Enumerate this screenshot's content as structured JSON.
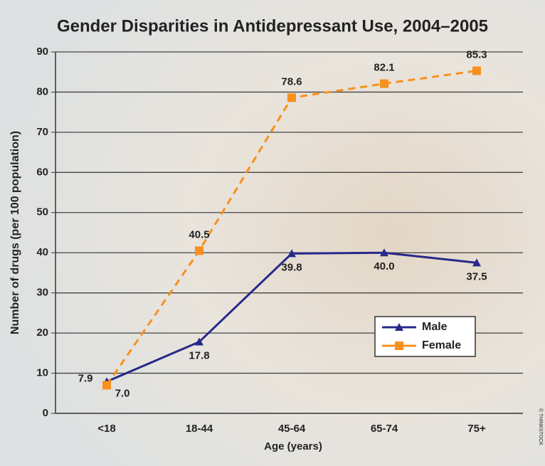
{
  "chart_data": {
    "type": "line",
    "title": "Gender Disparities in Antidepressant Use, 2004–2005",
    "x_label": "Age (years)",
    "y_label": "Number of drugs (per 100 population)",
    "credit": "© THINKSTOCK",
    "categories": [
      "<18",
      "18-44",
      "45-64",
      "65-74",
      "75+"
    ],
    "series": [
      {
        "name": "Male",
        "color": "#27288a",
        "marker": "triangle",
        "dashed": false,
        "values": [
          7.9,
          17.8,
          39.8,
          40.0,
          37.5
        ],
        "value_labels": [
          "7.9",
          "17.8",
          "39.8",
          "40.0",
          "37.5"
        ]
      },
      {
        "name": "Female",
        "color": "#f7901e",
        "marker": "square",
        "dashed": true,
        "values": [
          7.0,
          40.5,
          78.6,
          82.1,
          85.3
        ],
        "value_labels": [
          "7.0",
          "40.5",
          "78.6",
          "82.1",
          "85.3"
        ]
      }
    ],
    "ylim": [
      0,
      90
    ],
    "yticks": [
      0,
      10,
      20,
      30,
      40,
      50,
      60,
      70,
      80,
      90
    ],
    "grid": true,
    "legend": "lower right"
  }
}
